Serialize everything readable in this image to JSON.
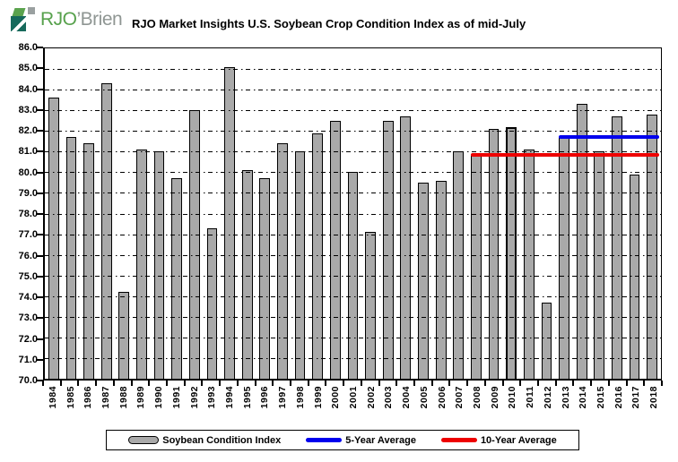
{
  "logo": {
    "name_primary": "RJO",
    "name_secondary": "’Brien"
  },
  "chart_data": {
    "type": "bar",
    "title": "RJO Market Insights U.S. Soybean Crop Condition Index as of mid-July",
    "categories": [
      "1984",
      "1985",
      "1986",
      "1987",
      "1988",
      "1989",
      "1990",
      "1991",
      "1992",
      "1993",
      "1994",
      "1995",
      "1996",
      "1997",
      "1998",
      "1999",
      "2000",
      "2001",
      "2002",
      "2003",
      "2004",
      "2005",
      "2006",
      "2007",
      "2008",
      "2009",
      "2010",
      "2011",
      "2012",
      "2013",
      "2014",
      "2015",
      "2016",
      "2017",
      "2018"
    ],
    "values": [
      83.6,
      81.7,
      81.4,
      84.3,
      74.2,
      81.1,
      81.0,
      79.7,
      83.0,
      77.3,
      85.1,
      80.1,
      79.7,
      81.4,
      81.0,
      81.9,
      82.5,
      80.0,
      77.1,
      82.5,
      82.7,
      79.5,
      79.6,
      81.0,
      80.9,
      82.1,
      82.2,
      81.1,
      73.7,
      81.7,
      83.3,
      81.0,
      82.7,
      79.9,
      82.8
    ],
    "bar_color": "#a9a9a9",
    "highlight_year": "2010",
    "ylim": [
      70,
      86
    ],
    "ytick_step": 1.0,
    "y_tick_labels": [
      "86.0",
      "85.0",
      "84.0",
      "83.0",
      "82.0",
      "81.0",
      "80.0",
      "79.0",
      "78.0",
      "77.0",
      "76.0",
      "75.0",
      "74.0",
      "73.0",
      "72.0",
      "71.0",
      "70.0"
    ],
    "grid": "horizontal dash-dot, drawn over bars",
    "overlays": [
      {
        "name": "five_year_average",
        "value": 81.7,
        "start_year": "2013",
        "end_year": "2018",
        "color": "#0000ee"
      },
      {
        "name": "ten_year_average",
        "value": 80.85,
        "start_year": "2008",
        "end_year": "2018",
        "color": "#ee0000"
      }
    ],
    "legend": {
      "position": "bottom",
      "items": [
        {
          "label": "Soybean Condition Index",
          "swatch": "gray-bar"
        },
        {
          "label": "5-Year Average",
          "swatch": "blue-line",
          "color": "#0000ee"
        },
        {
          "label": "10-Year Average",
          "swatch": "red-line",
          "color": "#ee0000"
        }
      ]
    }
  }
}
